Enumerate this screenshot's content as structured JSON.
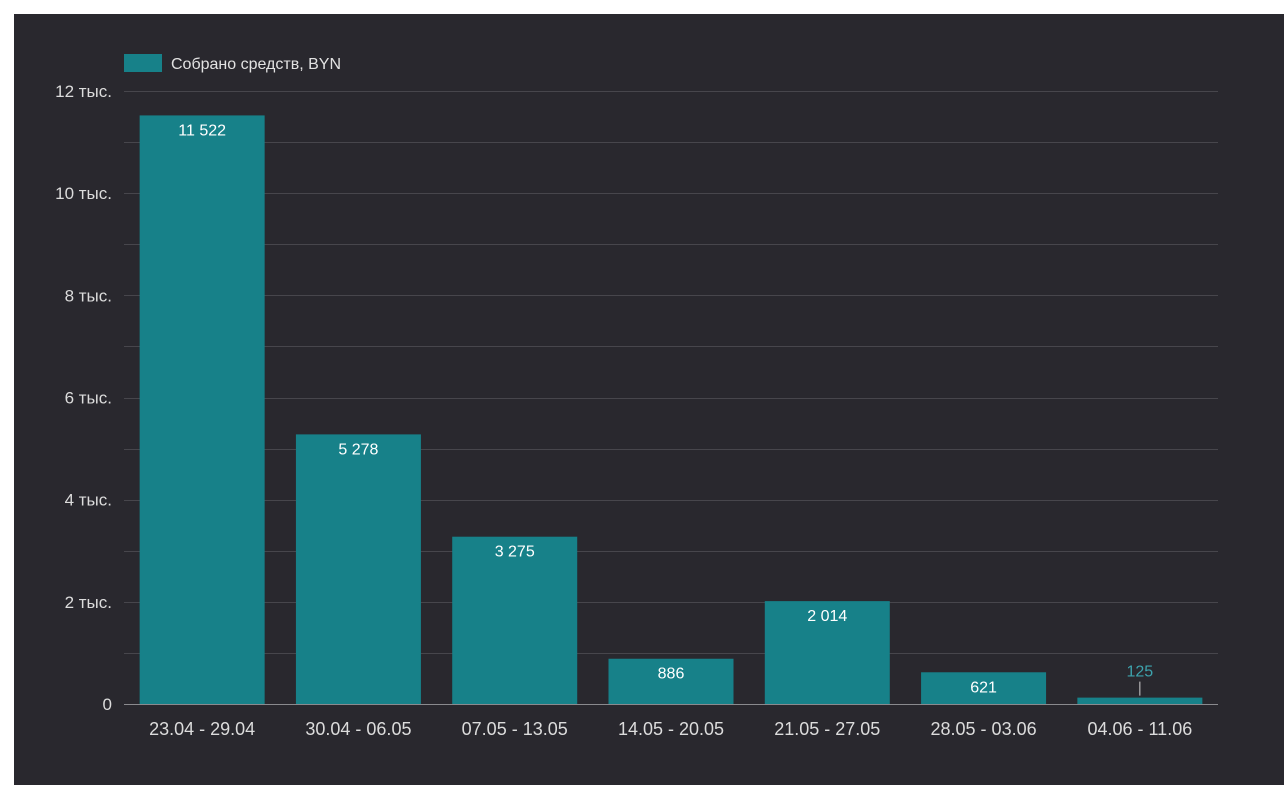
{
  "chart_data": {
    "type": "bar",
    "legend": "Собрано средств, BYN",
    "categories": [
      "23.04 - 29.04",
      "30.04 - 06.05",
      "07.05 - 13.05",
      "14.05 - 20.05",
      "21.05 - 27.05",
      "28.05 - 03.06",
      "04.06 - 11.06"
    ],
    "series": [
      {
        "name": "Собрано средств, BYN",
        "values": [
          11522,
          5278,
          3275,
          886,
          2014,
          621,
          125
        ],
        "labels": [
          "11 522",
          "5 278",
          "3 275",
          "886",
          "2 014",
          "621",
          "125"
        ]
      }
    ],
    "ylim": [
      0,
      12000
    ],
    "yticks": [
      0,
      2000,
      4000,
      6000,
      8000,
      10000,
      12000
    ],
    "ytick_labels": [
      "0",
      "2 тыс.",
      "4 тыс.",
      "6 тыс.",
      "8 тыс.",
      "10 тыс.",
      "12 тыс."
    ],
    "grid": true,
    "legend_position": "top-left",
    "colors": {
      "bar": "#178189",
      "background": "#29282e",
      "grid": "#47464c",
      "outside_label": "#3da3ad"
    }
  }
}
